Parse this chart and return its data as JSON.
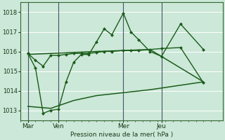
{
  "background_color": "#cce8d8",
  "grid_color": "#ffffff",
  "line_color": "#1a5c1a",
  "title": "Pression niveau de la mer( hPa )",
  "ylim": [
    1012.5,
    1018.5
  ],
  "yticks": [
    1013,
    1014,
    1015,
    1016,
    1017,
    1018
  ],
  "xtick_labels": [
    "Mar",
    "Ven",
    "Mer",
    "Jeu"
  ],
  "xtick_positions": [
    8,
    24,
    58,
    78
  ],
  "vline_positions": [
    8,
    24,
    58,
    78
  ],
  "xlim": [
    4,
    110
  ],
  "line2_x": [
    8,
    12,
    16,
    20,
    24,
    28,
    32,
    36,
    40,
    44,
    48,
    52,
    58,
    62,
    66,
    72,
    78,
    88,
    100
  ],
  "line2_y": [
    1015.9,
    1015.15,
    1012.85,
    1013.0,
    1013.05,
    1014.45,
    1015.45,
    1015.85,
    1015.85,
    1016.5,
    1017.15,
    1016.85,
    1017.95,
    1017.0,
    1016.6,
    1016.0,
    1015.75,
    1017.4,
    1016.1
  ],
  "line1_x": [
    8,
    12,
    16,
    20,
    24,
    28,
    32,
    36,
    40,
    44,
    48,
    52,
    58,
    62,
    66,
    72,
    78,
    88,
    100
  ],
  "line1_y": [
    1015.9,
    1015.55,
    1015.25,
    1015.8,
    1015.8,
    1015.85,
    1015.9,
    1015.9,
    1015.9,
    1015.95,
    1016.0,
    1016.0,
    1016.05,
    1016.05,
    1016.05,
    1016.1,
    1016.15,
    1016.2,
    1014.4
  ],
  "line3_x": [
    8,
    20,
    32,
    44,
    58,
    72,
    100
  ],
  "line3_y": [
    1015.85,
    1015.9,
    1015.95,
    1016.0,
    1016.05,
    1016.1,
    1014.45
  ],
  "line4_x": [
    8,
    20,
    32,
    44,
    58,
    72,
    100
  ],
  "line4_y": [
    1013.2,
    1013.1,
    1013.5,
    1013.75,
    1013.9,
    1014.05,
    1014.45
  ]
}
